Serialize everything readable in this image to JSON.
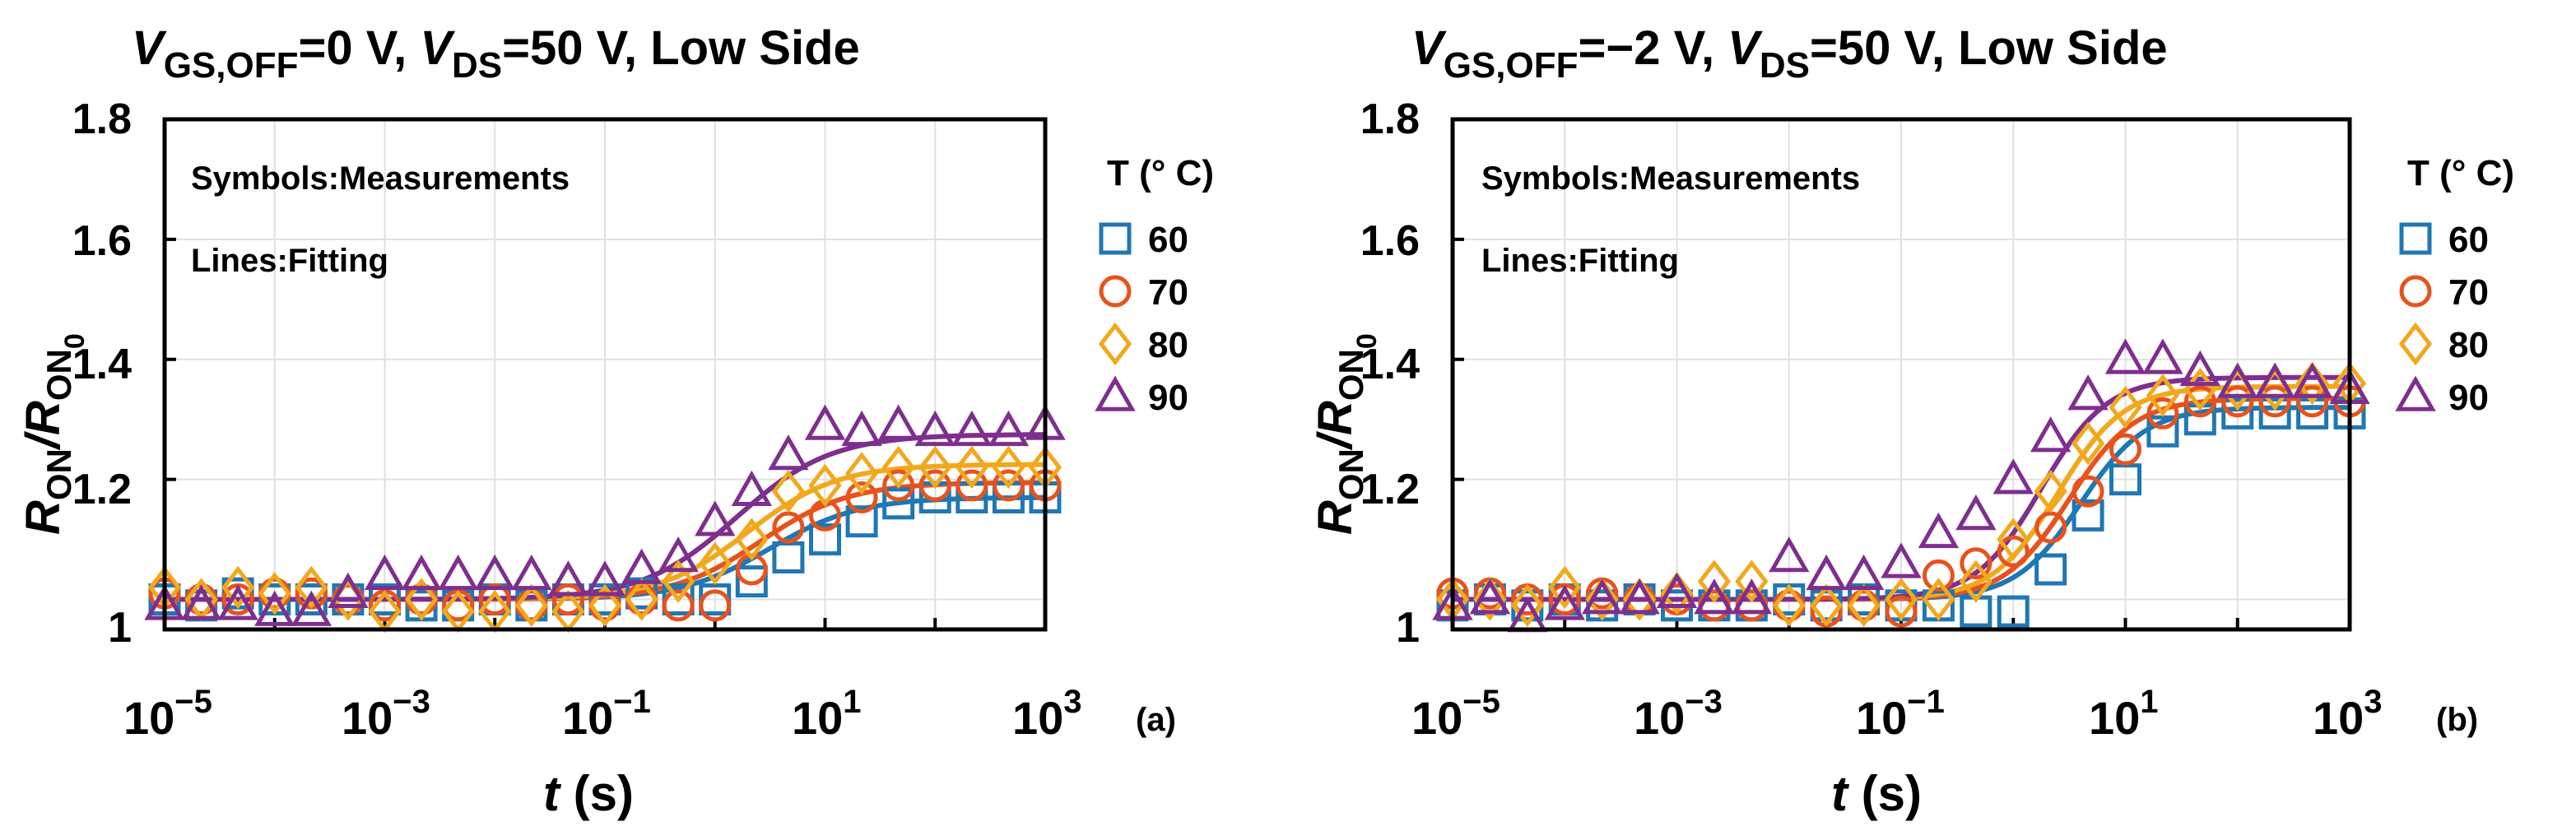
{
  "colors": {
    "T60": "#1f77b4",
    "T70": "#e8521c",
    "T80": "#f2a81d",
    "T90": "#7e2f8e",
    "grid": "#e0e0e0",
    "axis": "#000000"
  },
  "shared": {
    "ylabel_main": "R",
    "ylabel_sub1": "ON",
    "ylabel_mid": "/R",
    "ylabel_sub2": "ON",
    "ylabel_sub3": "0",
    "xlabel_var": "t",
    "xlabel_unit": " (s)",
    "legend_title": "T (° C)",
    "note_symbols": "Symbols:Measurements",
    "note_lines": "Lines:Fitting",
    "xticks": [
      {
        "base": "10",
        "exp": "−5"
      },
      {
        "base": "10",
        "exp": "−3"
      },
      {
        "base": "10",
        "exp": "−1"
      },
      {
        "base": "10",
        "exp": "1"
      },
      {
        "base": "10",
        "exp": "3"
      }
    ],
    "yticks": [
      "1",
      "1.2",
      "1.4",
      "1.6",
      "1.8"
    ]
  },
  "chart_data": [
    {
      "type": "scatter",
      "panel_label": "(a)",
      "title": {
        "v1": "V",
        "sub1": "GS,OFF",
        "mid1": "=0 V, ",
        "v2": "V",
        "sub2": "DS",
        "rest": "=50 V, Low Side"
      },
      "xscale": "log",
      "xlim_log10": [
        -5,
        3
      ],
      "ylim": [
        0.95,
        1.8
      ],
      "x_log10": [
        -5,
        -4.6667,
        -4.3333,
        -4,
        -3.6667,
        -3.3333,
        -3,
        -2.6667,
        -2.3333,
        -2,
        -1.6667,
        -1.3333,
        -1,
        -0.6667,
        -0.3333,
        0,
        0.3333,
        0.6667,
        1,
        1.3333,
        1.6667,
        2,
        2.3333,
        2.6667,
        3
      ],
      "series": [
        {
          "name": "60",
          "marker": "square",
          "values": [
            1.0,
            0.99,
            1.01,
            1.0,
            1.0,
            1.0,
            1.0,
            0.99,
            0.99,
            1.0,
            0.99,
            1.0,
            1.0,
            1.01,
            1.0,
            1.0,
            1.03,
            1.07,
            1.1,
            1.13,
            1.16,
            1.17,
            1.17,
            1.17,
            1.17
          ],
          "fit": {
            "base": 1.0,
            "amp": 0.17,
            "center": 0.5,
            "width": 0.9
          }
        },
        {
          "name": "70",
          "marker": "circle",
          "values": [
            1.01,
            1.0,
            1.0,
            1.01,
            1.01,
            1.0,
            0.99,
            1.0,
            0.99,
            1.0,
            0.99,
            1.0,
            0.99,
            1.0,
            0.99,
            0.99,
            1.05,
            1.12,
            1.14,
            1.17,
            1.19,
            1.19,
            1.19,
            1.19,
            1.19
          ],
          "fit": {
            "base": 1.0,
            "amp": 0.195,
            "center": 0.42,
            "width": 0.9
          }
        },
        {
          "name": "80",
          "marker": "diamond",
          "values": [
            1.02,
            1.0,
            1.02,
            1.01,
            1.02,
            1.0,
            0.98,
            1.0,
            0.98,
            0.98,
            0.99,
            0.98,
            0.99,
            1.0,
            1.03,
            1.06,
            1.1,
            1.18,
            1.19,
            1.21,
            1.22,
            1.22,
            1.22,
            1.22,
            1.22
          ],
          "fit": {
            "base": 1.0,
            "amp": 0.225,
            "center": 0.3,
            "width": 0.9
          }
        },
        {
          "name": "90",
          "marker": "triangle",
          "values": [
            0.99,
            0.99,
            0.99,
            0.98,
            0.98,
            1.01,
            1.04,
            1.04,
            1.04,
            1.04,
            1.04,
            1.03,
            1.03,
            1.05,
            1.07,
            1.13,
            1.18,
            1.24,
            1.29,
            1.28,
            1.29,
            1.28,
            1.28,
            1.28,
            1.29
          ],
          "fit": {
            "base": 1.0,
            "amp": 0.275,
            "center": 0.2,
            "width": 0.95
          }
        }
      ]
    },
    {
      "type": "scatter",
      "panel_label": "(b)",
      "title": {
        "v1": "V",
        "sub1": "GS,OFF",
        "mid1": "=−2 V, ",
        "v2": "V",
        "sub2": "DS",
        "rest": "=50 V, Low Side"
      },
      "xscale": "log",
      "xlim_log10": [
        -5,
        3
      ],
      "ylim": [
        0.95,
        1.8
      ],
      "x_log10": [
        -5,
        -4.6667,
        -4.3333,
        -4,
        -3.6667,
        -3.3333,
        -3,
        -2.6667,
        -2.3333,
        -2,
        -1.6667,
        -1.3333,
        -1,
        -0.6667,
        -0.3333,
        0,
        0.3333,
        0.6667,
        1,
        1.3333,
        1.6667,
        2,
        2.3333,
        2.6667,
        3
      ],
      "series": [
        {
          "name": "60",
          "marker": "square",
          "values": [
            0.99,
            1.0,
            0.99,
            1.0,
            0.99,
            1.0,
            0.99,
            0.99,
            0.99,
            1.0,
            0.99,
            1.0,
            0.99,
            0.99,
            0.98,
            0.98,
            1.05,
            1.14,
            1.2,
            1.28,
            1.3,
            1.31,
            1.31,
            1.31,
            1.31
          ],
          "fit": {
            "base": 1.0,
            "amp": 0.32,
            "center": 0.6,
            "width": 0.65
          }
        },
        {
          "name": "70",
          "marker": "circle",
          "values": [
            1.01,
            1.01,
            1.0,
            1.0,
            1.01,
            1.0,
            1.0,
            0.99,
            0.99,
            0.99,
            0.98,
            0.99,
            0.98,
            1.04,
            1.06,
            1.08,
            1.12,
            1.18,
            1.25,
            1.31,
            1.33,
            1.33,
            1.33,
            1.33,
            1.33
          ],
          "fit": {
            "base": 1.0,
            "amp": 0.335,
            "center": 0.5,
            "width": 0.65
          }
        },
        {
          "name": "80",
          "marker": "diamond",
          "values": [
            1.0,
            1.0,
            0.99,
            1.02,
            1.0,
            1.0,
            1.01,
            1.03,
            1.03,
            0.99,
            0.99,
            0.99,
            1.0,
            1.0,
            1.03,
            1.1,
            1.18,
            1.26,
            1.32,
            1.34,
            1.35,
            1.35,
            1.35,
            1.36,
            1.36
          ],
          "fit": {
            "base": 1.0,
            "amp": 0.355,
            "center": 0.4,
            "width": 0.65
          }
        },
        {
          "name": "90",
          "marker": "triangle",
          "values": [
            0.99,
            1.0,
            0.97,
            0.99,
            1.0,
            1.0,
            1.01,
            1.0,
            1.0,
            1.07,
            1.04,
            1.04,
            1.06,
            1.11,
            1.14,
            1.2,
            1.27,
            1.34,
            1.4,
            1.4,
            1.38,
            1.36,
            1.36,
            1.36,
            1.35
          ],
          "fit": {
            "base": 1.0,
            "amp": 0.37,
            "center": 0.25,
            "width": 0.65
          }
        }
      ]
    }
  ]
}
